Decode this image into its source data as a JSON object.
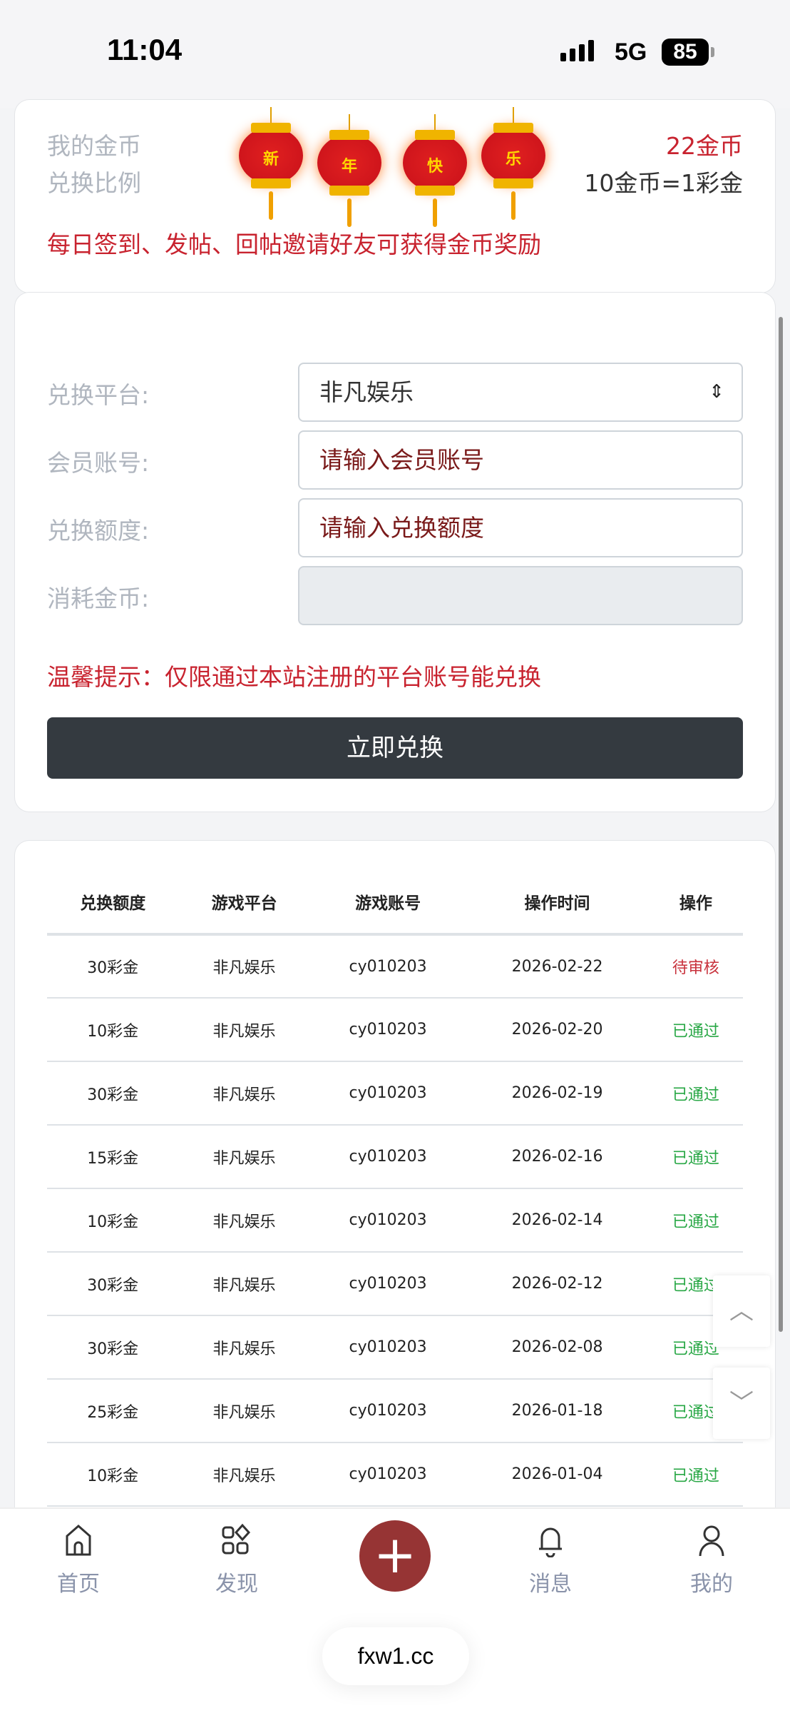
{
  "status_bar": {
    "time": "11:04",
    "network": "5G",
    "battery": "85"
  },
  "info_card": {
    "my_coins_label": "我的金币",
    "my_coins_value": "22金币",
    "ratio_label": "兑换比例",
    "ratio_value": "10金币=1彩金",
    "reward_tip": "每日签到、发帖、回帖邀请好友可获得金币奖励",
    "lantern_chars": [
      "新",
      "年",
      "快",
      "乐"
    ]
  },
  "form": {
    "platform_label": "兑换平台:",
    "platform_value": "非凡娱乐",
    "account_label": "会员账号:",
    "account_placeholder": "请输入会员账号",
    "amount_label": "兑换额度:",
    "amount_placeholder": "请输入兑换额度",
    "cost_label": "消耗金币:",
    "cost_value": "",
    "tip": "温馨提示：仅限通过本站注册的平台账号能兑换",
    "submit_label": "立即兑换"
  },
  "history": {
    "headers": [
      "兑换额度",
      "游戏平台",
      "游戏账号",
      "操作时间",
      "操作"
    ],
    "rows": [
      [
        "30彩金",
        "非凡娱乐",
        "cy010203",
        "2026-02-22",
        "待审核"
      ],
      [
        "10彩金",
        "非凡娱乐",
        "cy010203",
        "2026-02-20",
        "已通过"
      ],
      [
        "30彩金",
        "非凡娱乐",
        "cy010203",
        "2026-02-19",
        "已通过"
      ],
      [
        "15彩金",
        "非凡娱乐",
        "cy010203",
        "2026-02-16",
        "已通过"
      ],
      [
        "10彩金",
        "非凡娱乐",
        "cy010203",
        "2026-02-14",
        "已通过"
      ],
      [
        "30彩金",
        "非凡娱乐",
        "cy010203",
        "2026-02-12",
        "已通过"
      ],
      [
        "30彩金",
        "非凡娱乐",
        "cy010203",
        "2026-02-08",
        "已通过"
      ],
      [
        "25彩金",
        "非凡娱乐",
        "cy010203",
        "2026-01-18",
        "已通过"
      ],
      [
        "10彩金",
        "非凡娱乐",
        "cy010203",
        "2026-01-04",
        "已通过"
      ]
    ]
  },
  "tabbar": {
    "items": [
      {
        "label": "首页",
        "icon": "home-icon"
      },
      {
        "label": "发现",
        "icon": "discover-icon"
      },
      {
        "label": "",
        "icon": "plus-icon"
      },
      {
        "label": "消息",
        "icon": "bell-icon"
      },
      {
        "label": "我的",
        "icon": "user-icon"
      }
    ]
  },
  "url": "fxw1.cc",
  "colors": {
    "accent": "#963434",
    "danger": "#c8232f",
    "success": "#28a745",
    "button": "#343a40"
  }
}
